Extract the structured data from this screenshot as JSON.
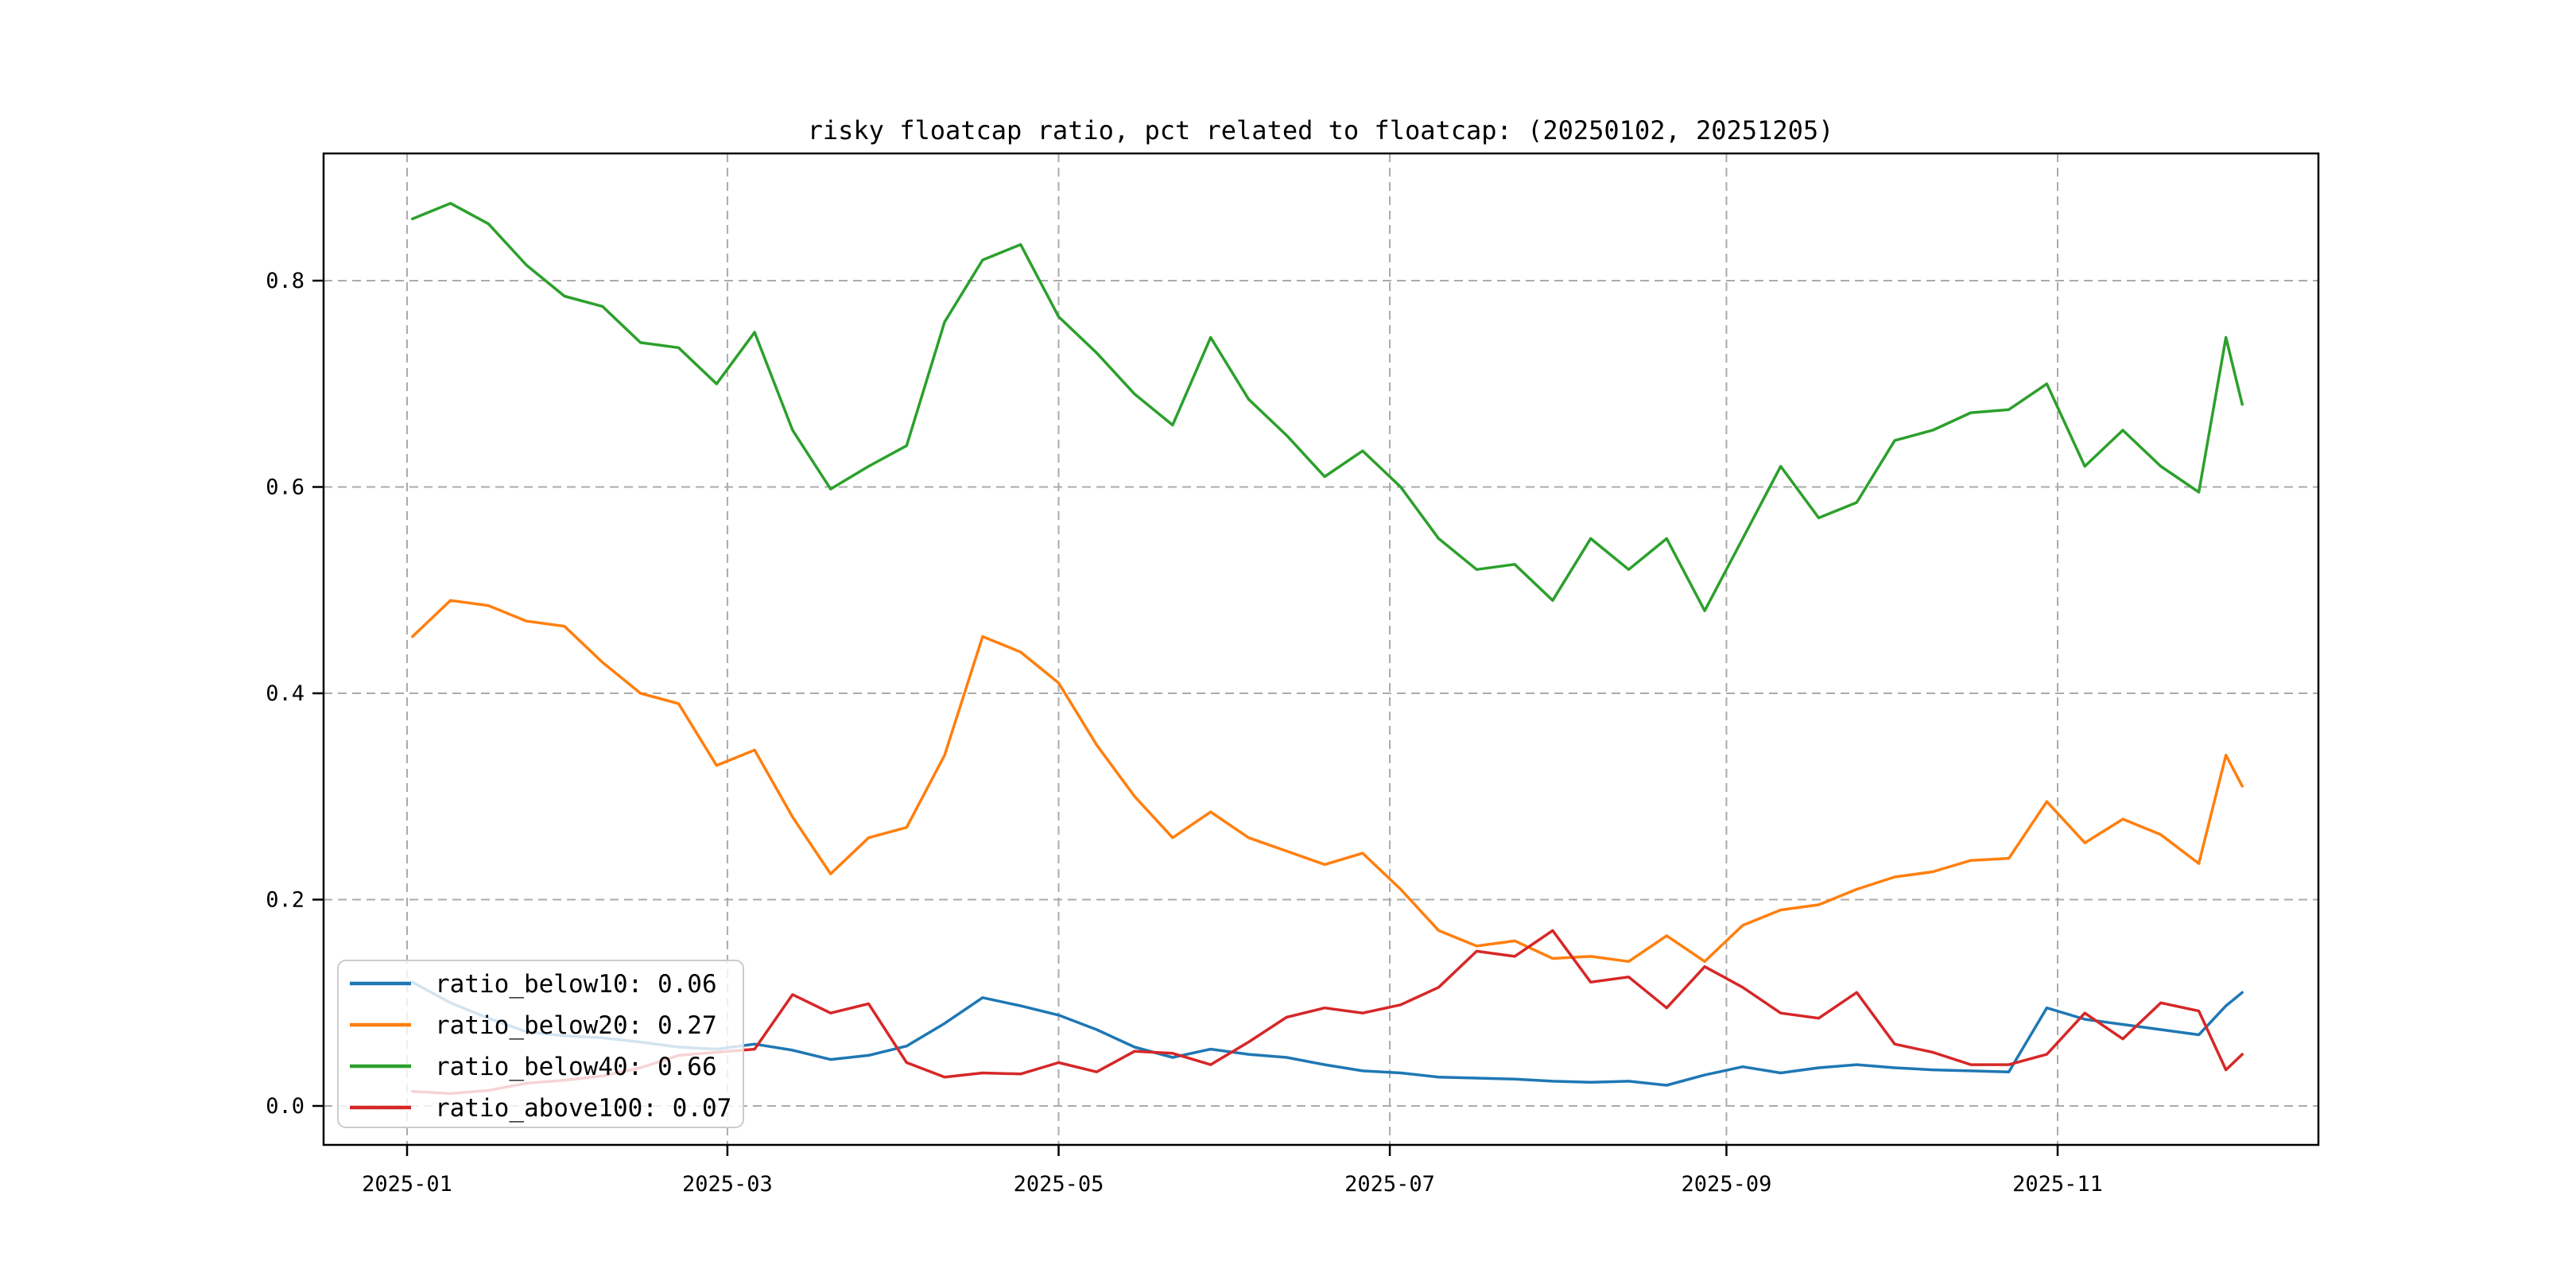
{
  "title": "risky floatcap ratio, pct related to floatcap: (20250102, 20251205)",
  "chart_data": {
    "type": "line",
    "title": "risky floatcap ratio, pct related to floatcap: (20250102, 20251205)",
    "xlabel": "",
    "ylabel": "",
    "grid": true,
    "grid_style": "dashed",
    "legend_position": "lower left",
    "ylim": [
      -0.037,
      0.924
    ],
    "x_range": [
      "2025-01-02",
      "2025-12-05"
    ],
    "x_ticks": [
      "2025-01",
      "2025-03",
      "2025-05",
      "2025-07",
      "2025-09",
      "2025-11"
    ],
    "y_ticks": [
      "0.0",
      "0.2",
      "0.4",
      "0.6",
      "0.8"
    ],
    "x": [
      "2025-01-02",
      "2025-01-09",
      "2025-01-16",
      "2025-01-23",
      "2025-01-30",
      "2025-02-06",
      "2025-02-13",
      "2025-02-20",
      "2025-02-27",
      "2025-03-06",
      "2025-03-13",
      "2025-03-20",
      "2025-03-27",
      "2025-04-03",
      "2025-04-10",
      "2025-04-17",
      "2025-04-24",
      "2025-05-01",
      "2025-05-08",
      "2025-05-15",
      "2025-05-22",
      "2025-05-29",
      "2025-06-05",
      "2025-06-12",
      "2025-06-19",
      "2025-06-26",
      "2025-07-03",
      "2025-07-10",
      "2025-07-17",
      "2025-07-24",
      "2025-07-31",
      "2025-08-07",
      "2025-08-14",
      "2025-08-21",
      "2025-08-28",
      "2025-09-04",
      "2025-09-11",
      "2025-09-18",
      "2025-09-25",
      "2025-10-02",
      "2025-10-09",
      "2025-10-16",
      "2025-10-23",
      "2025-10-30",
      "2025-11-06",
      "2025-11-13",
      "2025-11-20",
      "2025-11-27",
      "2025-12-02",
      "2025-12-05"
    ],
    "series": [
      {
        "name": "ratio_below10",
        "legend_label": "ratio_below10: 0.06",
        "displayed_value": "0.06",
        "color": "#1f77b4",
        "values": [
          0.12,
          0.1,
          0.085,
          0.072,
          0.068,
          0.066,
          0.062,
          0.057,
          0.055,
          0.06,
          0.054,
          0.045,
          0.049,
          0.058,
          0.08,
          0.105,
          0.097,
          0.088,
          0.074,
          0.057,
          0.047,
          0.055,
          0.05,
          0.047,
          0.04,
          0.034,
          0.032,
          0.028,
          0.027,
          0.026,
          0.024,
          0.023,
          0.024,
          0.02,
          0.03,
          0.038,
          0.032,
          0.037,
          0.04,
          0.037,
          0.035,
          0.034,
          0.033,
          0.095,
          0.084,
          0.079,
          0.074,
          0.069,
          0.097,
          0.11
        ]
      },
      {
        "name": "ratio_below20",
        "legend_label": "ratio_below20: 0.27",
        "displayed_value": "0.27",
        "color": "#ff7f0e",
        "values": [
          0.455,
          0.49,
          0.485,
          0.47,
          0.465,
          0.43,
          0.4,
          0.39,
          0.33,
          0.345,
          0.28,
          0.225,
          0.26,
          0.27,
          0.34,
          0.455,
          0.44,
          0.41,
          0.35,
          0.3,
          0.26,
          0.285,
          0.26,
          0.247,
          0.234,
          0.245,
          0.21,
          0.17,
          0.155,
          0.16,
          0.143,
          0.145,
          0.14,
          0.165,
          0.14,
          0.175,
          0.19,
          0.195,
          0.21,
          0.222,
          0.227,
          0.238,
          0.24,
          0.295,
          0.255,
          0.278,
          0.263,
          0.235,
          0.34,
          0.31
        ]
      },
      {
        "name": "ratio_below40",
        "legend_label": "ratio_below40: 0.66",
        "displayed_value": "0.66",
        "color": "#2ca02c",
        "values": [
          0.86,
          0.875,
          0.855,
          0.815,
          0.785,
          0.775,
          0.74,
          0.735,
          0.7,
          0.75,
          0.655,
          0.598,
          0.62,
          0.64,
          0.76,
          0.82,
          0.835,
          0.765,
          0.73,
          0.69,
          0.66,
          0.745,
          0.685,
          0.65,
          0.61,
          0.635,
          0.6,
          0.55,
          0.52,
          0.525,
          0.49,
          0.55,
          0.52,
          0.55,
          0.48,
          0.55,
          0.62,
          0.57,
          0.585,
          0.645,
          0.655,
          0.672,
          0.675,
          0.7,
          0.62,
          0.655,
          0.62,
          0.595,
          0.745,
          0.68
        ]
      },
      {
        "name": "ratio_above100",
        "legend_label": "ratio_above100: 0.07",
        "displayed_value": "0.07",
        "color": "#d62728",
        "values": [
          0.014,
          0.012,
          0.015,
          0.022,
          0.025,
          0.029,
          0.037,
          0.049,
          0.052,
          0.055,
          0.108,
          0.09,
          0.099,
          0.042,
          0.028,
          0.032,
          0.031,
          0.042,
          0.033,
          0.053,
          0.051,
          0.04,
          0.062,
          0.086,
          0.095,
          0.09,
          0.098,
          0.115,
          0.15,
          0.145,
          0.17,
          0.12,
          0.125,
          0.095,
          0.135,
          0.115,
          0.09,
          0.085,
          0.11,
          0.06,
          0.052,
          0.04,
          0.04,
          0.05,
          0.09,
          0.065,
          0.1,
          0.092,
          0.035,
          0.05
        ]
      }
    ]
  },
  "colors": {
    "background": "#ffffff",
    "grid": "#ababab",
    "spine": "#000000",
    "legend_border": "#cccccc",
    "legend_background": "rgba(255,255,255,0.8)"
  }
}
